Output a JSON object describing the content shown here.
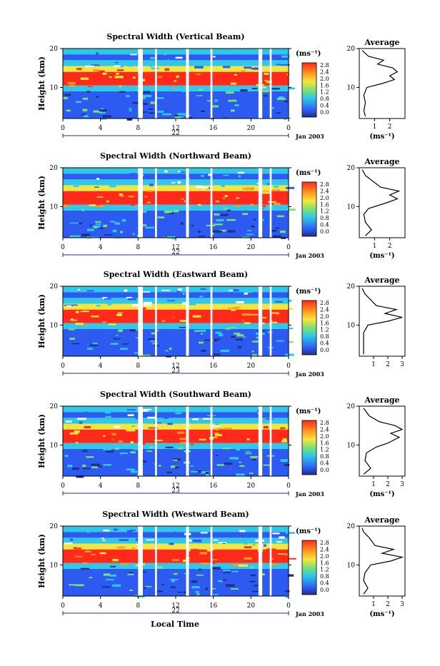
{
  "figure": {
    "x_axis_label": "Local Time",
    "colorbar_unit": "(ms⁻¹)",
    "average_title": "Average",
    "average_unit": "(ms⁻¹)",
    "date_label": "Jan 2003",
    "colors": {
      "red": "#ff2a1a",
      "orange": "#ff9b20",
      "yellow": "#f4e640",
      "green": "#7fe070",
      "cyan": "#2fc8e8",
      "blue": "#2d5af0",
      "dark_blue": "#203080",
      "black": "#000000"
    }
  },
  "chart_data": [
    {
      "type": "heatmap",
      "title": "Spectral Width (Vertical Beam)",
      "ylabel": "Height (km)",
      "xlabel": "",
      "x_ticks": [
        "0",
        "4",
        "8",
        "12",
        "16",
        "20",
        "0"
      ],
      "x_range": [
        0,
        24
      ],
      "day_label": "22",
      "y_ticks": [
        "20",
        "10"
      ],
      "y_range": [
        2,
        20
      ],
      "colorbar": {
        "ticks": [
          "2.8",
          "2.4",
          "2.0",
          "1.6",
          "1.2",
          "0.8",
          "0.4",
          "0.0"
        ],
        "unit": "(ms⁻¹)"
      },
      "data_gaps_hours": [
        [
          8.0,
          8.5
        ],
        [
          9.8,
          10.0
        ],
        [
          13.1,
          13.4
        ],
        [
          15.7,
          15.9
        ],
        [
          20.8,
          21.2
        ],
        [
          22.0,
          22.2
        ]
      ],
      "average": {
        "title": "Average",
        "x_ticks": [
          "1",
          "2"
        ],
        "y_ticks": [
          "20",
          "10"
        ],
        "xlabel": "(ms⁻¹)",
        "profile": [
          [
            0.4,
            2.5
          ],
          [
            0.3,
            4.0
          ],
          [
            0.4,
            6.0
          ],
          [
            0.3,
            8.0
          ],
          [
            0.5,
            10.0
          ],
          [
            1.5,
            11.0
          ],
          [
            2.3,
            12.0
          ],
          [
            2.0,
            13.0
          ],
          [
            2.5,
            14.0
          ],
          [
            2.2,
            15.0
          ],
          [
            1.2,
            16.0
          ],
          [
            1.6,
            17.0
          ],
          [
            0.6,
            18.0
          ],
          [
            0.2,
            19.5
          ]
        ]
      }
    },
    {
      "type": "heatmap",
      "title": "Spectral Width (Northward Beam)",
      "ylabel": "Height (km)",
      "xlabel": "",
      "x_ticks": [
        "0",
        "4",
        "8",
        "12",
        "16",
        "20",
        "0"
      ],
      "x_range": [
        0,
        24
      ],
      "day_label": "22",
      "y_ticks": [
        "20",
        "10"
      ],
      "y_range": [
        2,
        20
      ],
      "colorbar": {
        "ticks": [
          "2.8",
          "2.4",
          "2.0",
          "1.6",
          "1.2",
          "0.8",
          "0.4",
          "0.0"
        ],
        "unit": "(ms⁻¹)"
      },
      "data_gaps_hours": [
        [
          8.0,
          8.5
        ],
        [
          9.8,
          10.0
        ],
        [
          13.1,
          13.4
        ],
        [
          15.7,
          15.9
        ],
        [
          20.8,
          21.2
        ],
        [
          22.0,
          22.2
        ]
      ],
      "average": {
        "title": "Average",
        "x_ticks": [
          "1",
          "2"
        ],
        "y_ticks": [
          "20",
          "10"
        ],
        "xlabel": "(ms⁻¹)",
        "profile": [
          [
            0.4,
            2.5
          ],
          [
            0.8,
            4.0
          ],
          [
            0.4,
            6.0
          ],
          [
            0.3,
            8.0
          ],
          [
            0.6,
            9.5
          ],
          [
            1.8,
            11.0
          ],
          [
            2.5,
            12.0
          ],
          [
            2.0,
            13.0
          ],
          [
            2.6,
            14.0
          ],
          [
            1.4,
            15.0
          ],
          [
            0.9,
            16.5
          ],
          [
            0.4,
            18.0
          ],
          [
            0.2,
            19.5
          ]
        ]
      }
    },
    {
      "type": "heatmap",
      "title": "Spectral Width (Eastward Beam)",
      "ylabel": "Height (km)",
      "xlabel": "",
      "x_ticks": [
        "0",
        "4",
        "8",
        "12",
        "16",
        "20",
        "0"
      ],
      "x_range": [
        0,
        24
      ],
      "day_label": "23",
      "y_ticks": [
        "20",
        "10"
      ],
      "y_range": [
        2,
        20
      ],
      "colorbar": {
        "ticks": [
          "2.8",
          "2.4",
          "2.0",
          "1.6",
          "1.2",
          "0.8",
          "0.4",
          "0.0"
        ],
        "unit": "(ms⁻¹)"
      },
      "data_gaps_hours": [
        [
          8.0,
          8.5
        ],
        [
          9.8,
          10.0
        ],
        [
          13.1,
          13.4
        ],
        [
          15.7,
          15.9
        ],
        [
          20.8,
          21.2
        ],
        [
          22.0,
          22.2
        ]
      ],
      "average": {
        "title": "Average",
        "x_ticks": [
          "1",
          "2",
          "3"
        ],
        "y_ticks": [
          "20",
          "10"
        ],
        "xlabel": "",
        "profile": [
          [
            0.3,
            2.5
          ],
          [
            0.3,
            5.0
          ],
          [
            0.3,
            8.0
          ],
          [
            0.6,
            10.0
          ],
          [
            2.0,
            11.0
          ],
          [
            3.0,
            12.0
          ],
          [
            1.8,
            13.0
          ],
          [
            2.6,
            14.0
          ],
          [
            1.2,
            15.0
          ],
          [
            0.8,
            16.5
          ],
          [
            0.4,
            18.0
          ],
          [
            0.2,
            19.5
          ]
        ]
      }
    },
    {
      "type": "heatmap",
      "title": "Spectral Width (Southward Beam)",
      "ylabel": "Height (km)",
      "xlabel": "",
      "x_ticks": [
        "0",
        "4",
        "8",
        "12",
        "16",
        "20",
        "0"
      ],
      "x_range": [
        0,
        24
      ],
      "day_label": "23",
      "y_ticks": [
        "20",
        "10"
      ],
      "y_range": [
        2,
        20
      ],
      "colorbar": {
        "ticks": [
          "2.8",
          "2.4",
          "2.0",
          "1.6",
          "1.2",
          "0.8",
          "0.4",
          "0.0"
        ],
        "unit": "(ms⁻¹)"
      },
      "data_gaps_hours": [
        [
          8.0,
          8.5
        ],
        [
          9.8,
          10.0
        ],
        [
          13.1,
          13.4
        ],
        [
          15.7,
          15.9
        ],
        [
          20.8,
          21.2
        ],
        [
          22.0,
          22.2
        ]
      ],
      "average": {
        "title": "Average",
        "x_ticks": [
          "1",
          "2",
          "3"
        ],
        "y_ticks": [
          "20",
          "10"
        ],
        "xlabel": "(ms⁻¹)",
        "profile": [
          [
            0.3,
            2.5
          ],
          [
            0.8,
            4.0
          ],
          [
            0.4,
            6.0
          ],
          [
            0.5,
            8.0
          ],
          [
            1.2,
            9.5
          ],
          [
            2.0,
            10.5
          ],
          [
            2.8,
            12.0
          ],
          [
            2.2,
            13.0
          ],
          [
            3.0,
            14.0
          ],
          [
            2.5,
            15.0
          ],
          [
            1.4,
            16.0
          ],
          [
            0.7,
            17.5
          ],
          [
            0.3,
            19.5
          ]
        ]
      }
    },
    {
      "type": "heatmap",
      "title": "Spectral Width (Westward Beam)",
      "ylabel": "Height (km)",
      "xlabel": "Local Time",
      "x_ticks": [
        "0",
        "4",
        "8",
        "12",
        "16",
        "20",
        "0"
      ],
      "x_range": [
        0,
        24
      ],
      "day_label": "22",
      "y_ticks": [
        "20",
        "10"
      ],
      "y_range": [
        2,
        20
      ],
      "colorbar": {
        "ticks": [
          "2.8",
          "2.4",
          "2.0",
          "1.6",
          "1.2",
          "0.8",
          "0.4",
          "0.0"
        ],
        "unit": "(ms⁻¹)"
      },
      "data_gaps_hours": [
        [
          8.0,
          8.5
        ],
        [
          9.8,
          10.0
        ],
        [
          13.1,
          13.4
        ],
        [
          15.7,
          15.9
        ],
        [
          20.8,
          21.2
        ],
        [
          22.0,
          22.2
        ]
      ],
      "average": {
        "title": "Average",
        "x_ticks": [
          "1",
          "2",
          "3"
        ],
        "y_ticks": [
          "20",
          "10"
        ],
        "xlabel": "(ms⁻¹)",
        "profile": [
          [
            0.3,
            2.5
          ],
          [
            0.6,
            4.0
          ],
          [
            0.3,
            6.0
          ],
          [
            0.4,
            8.0
          ],
          [
            0.8,
            10.0
          ],
          [
            2.2,
            11.0
          ],
          [
            3.0,
            12.0
          ],
          [
            1.6,
            13.0
          ],
          [
            2.4,
            14.0
          ],
          [
            1.1,
            15.0
          ],
          [
            0.7,
            17.0
          ],
          [
            0.3,
            18.5
          ],
          [
            0.2,
            19.5
          ]
        ]
      }
    }
  ]
}
